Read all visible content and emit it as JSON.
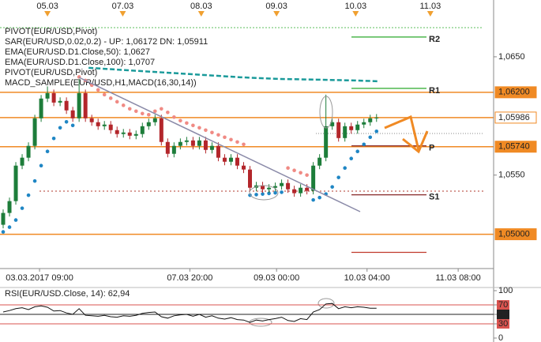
{
  "chart_data": {
    "type": "candlestick",
    "legend": [
      {
        "text": "PIVOT(EUR/USD,Pivot)",
        "color": "#222222"
      },
      {
        "text": "SAR(EUR/USD,0.02,0.2) -  UP: 1,06172  DN: 1,05911",
        "color": "#e06a5a"
      },
      {
        "text": "EMA(EUR/USD.D1.Close,50): 1,0627",
        "color": "#1a9a9a"
      },
      {
        "text": "EMA(EUR/USD.D1.Close,100): 1,0707",
        "color": "#b03a2e"
      },
      {
        "text": "PIVOT(EUR/USD,Pivot)",
        "color": "#222222"
      },
      {
        "text": "MACD_SAMPLE(EUR/USD,H1,MACD(16,30,14))",
        "color": "#777777"
      }
    ],
    "up_color": "#1d7d3a",
    "down_color": "#b3262b",
    "open": [
      1.0508,
      1.0518,
      1.0528,
      1.0558,
      1.05647,
      1.05747,
      1.0598,
      1.06147,
      1.06193,
      1.06113,
      1.06127,
      1.06047,
      1.0598,
      1.06193,
      1.0598,
      1.05947,
      1.05913,
      1.05927,
      1.0588,
      1.05847,
      1.0586,
      1.05833,
      1.05847,
      1.05913,
      1.05947,
      1.0598,
      1.0578,
      1.0568,
      1.05747,
      1.0578,
      1.05793,
      1.05747,
      1.05793,
      1.05713,
      1.05747,
      1.05647,
      1.05613,
      1.05647,
      1.0558,
      1.05547,
      1.05393,
      1.05413,
      1.0538,
      1.05393,
      1.05407,
      1.05433,
      1.0538,
      1.05347,
      1.05393,
      1.05367,
      1.0558,
      1.05647,
      1.05913,
      1.05947,
      1.05813,
      1.05913,
      1.0588,
      1.05927,
      1.05947,
      1.0598
    ],
    "high": [
      1.0521,
      1.0531,
      1.0561,
      1.05677,
      1.05777,
      1.0601,
      1.06177,
      1.0625,
      1.06223,
      1.06157,
      1.06157,
      1.06077,
      1.06313,
      1.06223,
      1.0601,
      1.05977,
      1.05957,
      1.05957,
      1.0591,
      1.0589,
      1.0589,
      1.05877,
      1.05943,
      1.05977,
      1.0601,
      1.0601,
      1.0581,
      1.05777,
      1.0581,
      1.05823,
      1.05823,
      1.05823,
      1.05823,
      1.05777,
      1.05777,
      1.05677,
      1.05677,
      1.05677,
      1.0561,
      1.05577,
      1.05443,
      1.05443,
      1.05423,
      1.05437,
      1.05463,
      1.05463,
      1.0541,
      1.05423,
      1.05423,
      1.0561,
      1.05677,
      1.0618,
      1.05977,
      1.05977,
      1.05943,
      1.05943,
      1.05957,
      1.05977,
      1.0601,
      1.06016
    ],
    "low": [
      1.0505,
      1.0515,
      1.0525,
      1.0555,
      1.05617,
      1.05717,
      1.0595,
      1.06117,
      1.06083,
      1.06083,
      1.06017,
      1.0595,
      1.0595,
      1.0595,
      1.05917,
      1.05883,
      1.05883,
      1.0585,
      1.05817,
      1.05817,
      1.05803,
      1.05803,
      1.05817,
      1.05883,
      1.05917,
      1.0575,
      1.0565,
      1.0565,
      1.05717,
      1.0575,
      1.05717,
      1.05717,
      1.05683,
      1.05683,
      1.05617,
      1.05583,
      1.05583,
      1.0555,
      1.05517,
      1.05363,
      1.05363,
      1.0535,
      1.0535,
      1.05363,
      1.05377,
      1.0535,
      1.05317,
      1.05317,
      1.05337,
      1.05337,
      1.0555,
      1.05617,
      1.05883,
      1.05783,
      1.05783,
      1.0585,
      1.0585,
      1.05897,
      1.05917,
      1.0595
    ],
    "close": [
      1.0518,
      1.0528,
      1.0558,
      1.05647,
      1.05747,
      1.0598,
      1.06147,
      1.06193,
      1.06113,
      1.06127,
      1.06047,
      1.0598,
      1.06193,
      1.0598,
      1.05947,
      1.05913,
      1.05927,
      1.0588,
      1.05847,
      1.0586,
      1.05833,
      1.05847,
      1.05913,
      1.05947,
      1.0598,
      1.0578,
      1.0568,
      1.05747,
      1.0578,
      1.05793,
      1.05747,
      1.05793,
      1.05713,
      1.05747,
      1.05647,
      1.05613,
      1.05647,
      1.0558,
      1.05547,
      1.05393,
      1.05413,
      1.0538,
      1.05393,
      1.05407,
      1.05433,
      1.0538,
      1.05347,
      1.05393,
      1.05367,
      1.0558,
      1.05647,
      1.05913,
      1.05947,
      1.05813,
      1.05913,
      1.0588,
      1.05927,
      1.05947,
      1.0598,
      1.05986
    ],
    "sar": [
      1.0502,
      1.0506,
      1.0512,
      1.0522,
      1.0533,
      1.0545,
      1.0558,
      1.057,
      1.0581,
      1.059,
      1.0595,
      1.0592,
      1.0633,
      1.063,
      1.0626,
      1.0622,
      1.0618,
      1.0615,
      1.0612,
      1.0609,
      1.0606,
      1.0604,
      1.0602,
      1.0601,
      1.0604,
      1.0606,
      1.0603,
      1.0599,
      1.0596,
      1.0594,
      1.0592,
      1.059,
      1.0588,
      1.0586,
      1.0584,
      1.0582,
      1.058,
      1.0578,
      1.0576,
      1.0533,
      1.05335,
      1.0534,
      1.05345,
      1.0535,
      1.05355,
      1.0556,
      1.0554,
      1.0552,
      1.055,
      1.0529,
      1.0531,
      1.0534,
      1.054,
      1.0548,
      1.0556,
      1.0564,
      1.057,
      1.0576,
      1.0582,
      1.0587
    ],
    "sar_above_color": "#f08a84",
    "sar_below_color": "#1f86c4",
    "ema50": {
      "x": [
        14,
        20,
        26,
        32,
        38,
        44,
        50,
        56,
        60
      ],
      "values": [
        1.06407,
        1.06387,
        1.06367,
        1.06347,
        1.06327,
        1.06313,
        1.06307,
        1.063,
        1.06293
      ],
      "color": "#1a9a9a"
    },
    "xlim": [
      0,
      78
    ],
    "xticks": [
      {
        "value": 6.25,
        "label": "03.03.2017 09:00"
      },
      {
        "value": 30,
        "label": "07.03 20:00"
      },
      {
        "value": 43.7,
        "label": "09.03 00:00"
      },
      {
        "value": 58,
        "label": "10.03 04:00"
      },
      {
        "value": 72.4,
        "label": "11.03 08:00"
      }
    ],
    "top_ticks": [
      {
        "value": 7.5,
        "label": "05.03"
      },
      {
        "value": 19.4,
        "label": "07.03"
      },
      {
        "value": 31.8,
        "label": "08.03"
      },
      {
        "value": 43.7,
        "label": "09.03"
      },
      {
        "value": 56.2,
        "label": "10.03"
      },
      {
        "value": 68,
        "label": "11.03"
      }
    ],
    "ylim": [
      1.0471,
      1.0688
    ],
    "yticks": [
      {
        "value": 1.065,
        "label": "1,0650"
      },
      {
        "value": 1.055,
        "label": "1,0550"
      }
    ],
    "levels": [
      {
        "value": 1.062,
        "label": "1,06200",
        "color": "#f08a24",
        "text_color": "#ffffff"
      },
      {
        "value": 1.05986,
        "label": "1,05986",
        "color": "#f08a24",
        "text_color": "#222222"
      },
      {
        "value": 1.0574,
        "label": "1,05740",
        "color": "#f08a24",
        "text_color": "#ffffff"
      },
      {
        "value": 1.05,
        "label": "1,05000",
        "color": "#f08a24",
        "text_color": "#ffffff"
      }
    ],
    "pivots": [
      {
        "name": "R2",
        "value": 1.06667,
        "color": "#2aa82a"
      },
      {
        "name": "R1",
        "value": 1.06233,
        "color": "#2aa82a"
      },
      {
        "name": "P",
        "value": 1.05747,
        "color": "#7a1010"
      },
      {
        "name": "S1",
        "value": 1.05333,
        "color": "#7a1010"
      },
      {
        "value": 1.04847,
        "color": "#c0392b"
      }
    ],
    "rsi": {
      "label": "RSI(EUR/USD.Close, 14): 62,94",
      "values": [
        55,
        58,
        62,
        64,
        60,
        66,
        68,
        65,
        57,
        58,
        53,
        50,
        62,
        48,
        47,
        46,
        48,
        45,
        44,
        47,
        46,
        48,
        52,
        54,
        55,
        45,
        42,
        47,
        49,
        50,
        46,
        50,
        44,
        47,
        42,
        40,
        43,
        39,
        38,
        33,
        38,
        36,
        39,
        41,
        44,
        37,
        35,
        41,
        39,
        55,
        60,
        72,
        73,
        62,
        66,
        64,
        66,
        65,
        63,
        62.94
      ],
      "ylim": [
        0,
        100
      ],
      "yticks": [
        0,
        30,
        50,
        70,
        100
      ],
      "levels": [
        30,
        50,
        70
      ],
      "level_color": "#d9534f"
    }
  }
}
